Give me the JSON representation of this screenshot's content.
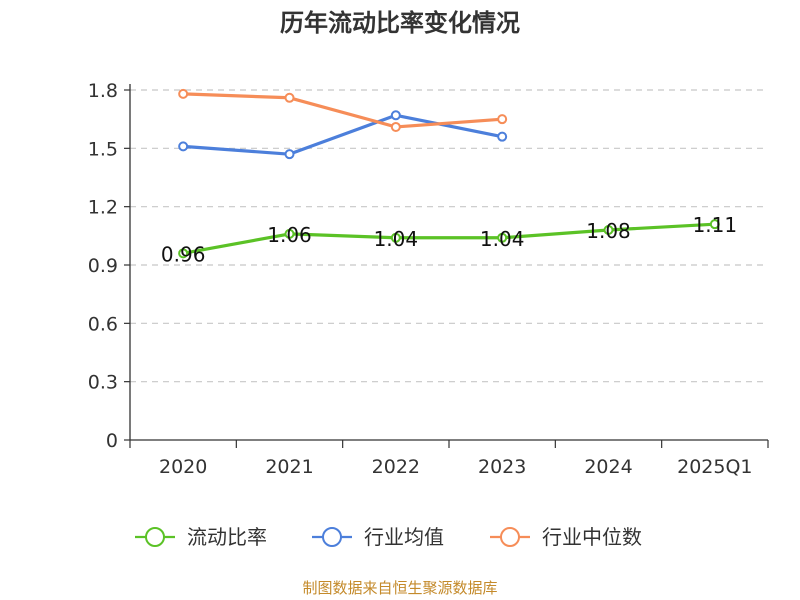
{
  "chart_data": {
    "type": "line",
    "title": "历年流动比率变化情况",
    "categories": [
      "2020",
      "2021",
      "2022",
      "2023",
      "2024",
      "2025Q1"
    ],
    "y_ticks": [
      "0",
      "0.3",
      "0.6",
      "0.9",
      "1.2",
      "1.5",
      "1.8"
    ],
    "ylim": [
      0,
      1.8
    ],
    "grid": "horizontal-dashed",
    "legend_position": "bottom",
    "series": [
      {
        "name": "流动比率",
        "color": "#5bc226",
        "values": [
          0.96,
          1.06,
          1.04,
          1.04,
          1.08,
          1.11
        ],
        "labels": [
          "0.96",
          "1.06",
          "1.04",
          "1.04",
          "1.08",
          "1.11"
        ]
      },
      {
        "name": "行业均值",
        "color": "#4c7fdb",
        "values": [
          1.51,
          1.47,
          1.67,
          1.56,
          null,
          null
        ]
      },
      {
        "name": "行业中位数",
        "color": "#f68d58",
        "values": [
          1.78,
          1.76,
          1.61,
          1.65,
          null,
          null
        ]
      }
    ],
    "source": "制图数据来自恒生聚源数据库",
    "source_color": "#c48a2a"
  }
}
